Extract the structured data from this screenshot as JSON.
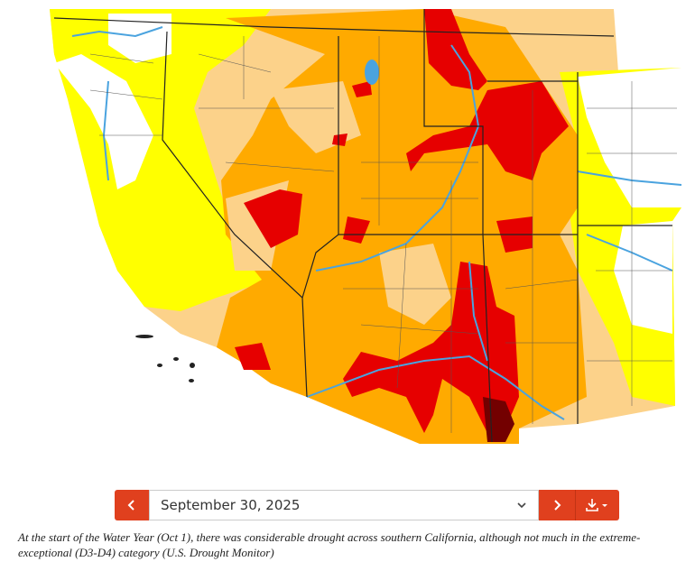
{
  "selector": {
    "date": "September 30, 2025"
  },
  "caption": {
    "text": "At the start of the Water Year (Oct 1), there was considerable drought across southern California, although not much in the extreme-exceptional (D3-D4) category (U.S. Drought Monitor)"
  }
}
